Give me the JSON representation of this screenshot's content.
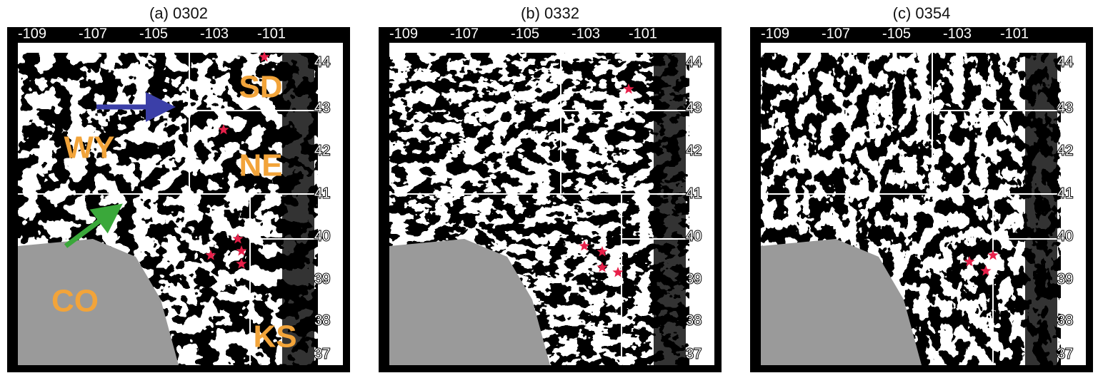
{
  "figure": {
    "panels": [
      {
        "title": "(a) 0302",
        "lon_labels": [
          "-109",
          "-107",
          "-105",
          "-103",
          "-101"
        ],
        "lat_labels": [
          "44",
          "43",
          "42",
          "41",
          "40",
          "39",
          "38",
          "37"
        ],
        "state_labels": [
          "SD",
          "WY",
          "NE",
          "CO",
          "KS"
        ]
      },
      {
        "title": "(b) 0332",
        "lon_labels": [
          "-109",
          "-107",
          "-105",
          "-103",
          "-101"
        ],
        "lat_labels": [
          "44",
          "43",
          "42",
          "41",
          "40",
          "39",
          "38",
          "37"
        ]
      },
      {
        "title": "(c) 0354",
        "lon_labels": [
          "-109",
          "-107",
          "-105",
          "-103",
          "-101"
        ],
        "lat_labels": [
          "44",
          "43",
          "42",
          "41",
          "40",
          "39",
          "38",
          "37"
        ]
      }
    ]
  }
}
